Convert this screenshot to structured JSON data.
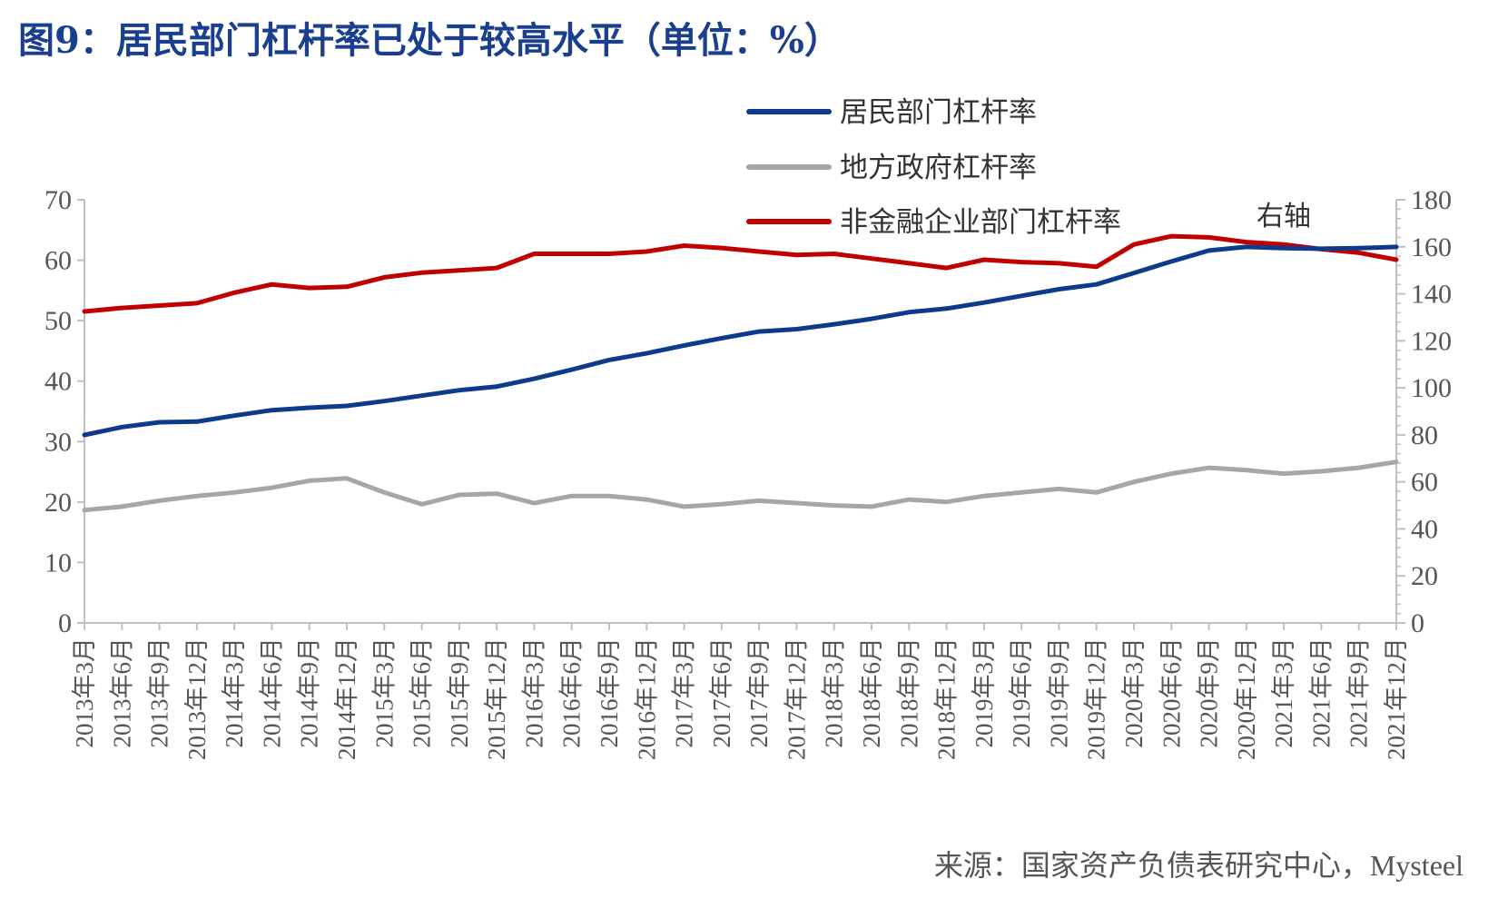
{
  "title": "图9：居民部门杠杆率已处于较高水平（单位：%）",
  "source": "来源：国家资产负债表研究中心，Mysteel",
  "chart_data": {
    "type": "line",
    "categories": [
      "2013年3月",
      "2013年6月",
      "2013年9月",
      "2013年12月",
      "2014年3月",
      "2014年6月",
      "2014年9月",
      "2014年12月",
      "2015年3月",
      "2015年6月",
      "2015年9月",
      "2015年12月",
      "2016年3月",
      "2016年6月",
      "2016年9月",
      "2016年12月",
      "2017年3月",
      "2017年6月",
      "2017年9月",
      "2017年12月",
      "2018年3月",
      "2018年6月",
      "2018年9月",
      "2018年12月",
      "2019年3月",
      "2019年6月",
      "2019年9月",
      "2019年12月",
      "2020年3月",
      "2020年6月",
      "2020年9月",
      "2020年12月",
      "2021年3月",
      "2021年6月",
      "2021年9月",
      "2021年12月"
    ],
    "series": [
      {
        "name": "居民部门杠杆率",
        "axis": "left",
        "color": "#0d3a8a",
        "values": [
          31.1,
          32.4,
          33.2,
          33.3,
          34.3,
          35.2,
          35.6,
          35.9,
          36.7,
          37.6,
          38.5,
          39.1,
          40.4,
          41.9,
          43.5,
          44.6,
          45.9,
          47.1,
          48.2,
          48.6,
          49.4,
          50.3,
          51.4,
          52.0,
          53.0,
          54.1,
          55.2,
          56.0,
          57.9,
          59.8,
          61.6,
          62.2,
          62.0,
          61.9,
          62.0,
          62.2
        ]
      },
      {
        "name": "地方政府杠杆率",
        "axis": "right",
        "color": "#a6a6a6",
        "values": [
          48,
          49.5,
          52,
          54,
          55.5,
          57.5,
          60.5,
          61.5,
          55.5,
          50.5,
          54.5,
          55,
          51,
          54,
          54,
          52.5,
          49.5,
          50.5,
          52,
          51,
          50,
          49.5,
          52.5,
          51.5,
          54,
          55.5,
          57,
          55.5,
          60,
          63.5,
          66,
          65,
          63.5,
          64.5,
          66,
          68.5
        ]
      },
      {
        "name": "非金融企业部门杠杆率",
        "axis": "right",
        "color": "#c00000",
        "values": [
          132.5,
          134,
          135,
          136,
          140.5,
          144,
          142.5,
          143,
          147,
          149,
          150,
          151,
          157,
          157,
          157,
          158,
          160.5,
          159.5,
          158,
          156.5,
          157,
          155,
          153,
          151,
          154.5,
          153.5,
          153,
          151.5,
          161,
          164.5,
          164,
          162,
          161,
          159,
          157.5,
          154.5
        ]
      }
    ],
    "y_left": {
      "min": 0,
      "max": 70,
      "ticks": [
        0,
        10,
        20,
        30,
        40,
        50,
        60,
        70
      ]
    },
    "y_right": {
      "min": 0,
      "max": 180,
      "ticks": [
        0,
        20,
        40,
        60,
        80,
        100,
        120,
        140,
        160,
        180
      ]
    },
    "right_axis_note": "右轴",
    "grid": false,
    "legend_position": "top"
  }
}
